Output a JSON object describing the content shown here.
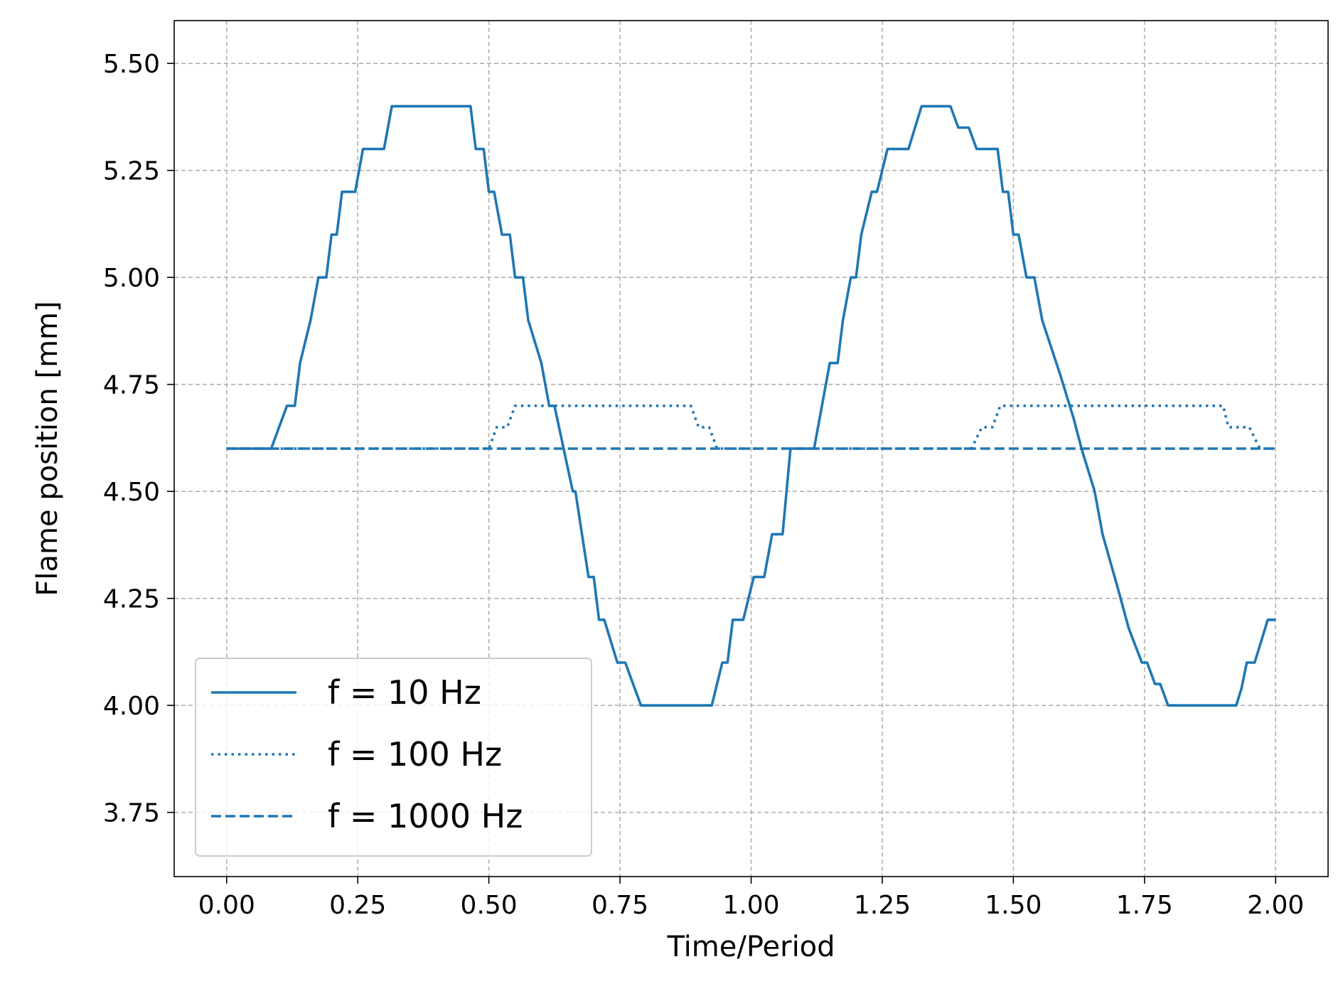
{
  "chart_data": {
    "type": "line",
    "title": "",
    "xlabel": "Time/Period",
    "ylabel": "Flame position [mm]",
    "xlim": [
      -0.1,
      2.1
    ],
    "ylim": [
      3.6,
      5.6
    ],
    "xticks": [
      0.0,
      0.25,
      0.5,
      0.75,
      1.0,
      1.25,
      1.5,
      1.75,
      2.0
    ],
    "xtick_labels": [
      "0.00",
      "0.25",
      "0.50",
      "0.75",
      "1.00",
      "1.25",
      "1.50",
      "1.75",
      "2.00"
    ],
    "yticks": [
      3.75,
      4.0,
      4.25,
      4.5,
      4.75,
      5.0,
      5.25,
      5.5
    ],
    "ytick_labels": [
      "3.75",
      "4.00",
      "4.25",
      "4.50",
      "4.75",
      "5.00",
      "5.25",
      "5.50"
    ],
    "grid": true,
    "legend_position": "lower-left",
    "series": [
      {
        "name": "f = 10 Hz",
        "style": "solid",
        "color": "#1f77b4",
        "points": [
          [
            0.0,
            4.6
          ],
          [
            0.085,
            4.6
          ],
          [
            0.115,
            4.7
          ],
          [
            0.13,
            4.7
          ],
          [
            0.14,
            4.8
          ],
          [
            0.16,
            4.9
          ],
          [
            0.175,
            5.0
          ],
          [
            0.19,
            5.0
          ],
          [
            0.2,
            5.1
          ],
          [
            0.21,
            5.1
          ],
          [
            0.22,
            5.2
          ],
          [
            0.245,
            5.2
          ],
          [
            0.26,
            5.3
          ],
          [
            0.3,
            5.3
          ],
          [
            0.315,
            5.4
          ],
          [
            0.465,
            5.4
          ],
          [
            0.475,
            5.3
          ],
          [
            0.49,
            5.3
          ],
          [
            0.5,
            5.2
          ],
          [
            0.51,
            5.2
          ],
          [
            0.525,
            5.1
          ],
          [
            0.54,
            5.1
          ],
          [
            0.55,
            5.0
          ],
          [
            0.565,
            5.0
          ],
          [
            0.575,
            4.9
          ],
          [
            0.6,
            4.8
          ],
          [
            0.615,
            4.7
          ],
          [
            0.625,
            4.7
          ],
          [
            0.66,
            4.5
          ],
          [
            0.665,
            4.5
          ],
          [
            0.69,
            4.3
          ],
          [
            0.7,
            4.3
          ],
          [
            0.71,
            4.2
          ],
          [
            0.72,
            4.2
          ],
          [
            0.745,
            4.1
          ],
          [
            0.76,
            4.1
          ],
          [
            0.79,
            4.0
          ],
          [
            0.925,
            4.0
          ],
          [
            0.945,
            4.1
          ],
          [
            0.955,
            4.1
          ],
          [
            0.965,
            4.2
          ],
          [
            0.985,
            4.2
          ],
          [
            1.005,
            4.3
          ],
          [
            1.025,
            4.3
          ],
          [
            1.04,
            4.4
          ],
          [
            1.06,
            4.4
          ],
          [
            1.075,
            4.6
          ],
          [
            1.12,
            4.6
          ],
          [
            1.15,
            4.8
          ],
          [
            1.165,
            4.8
          ],
          [
            1.175,
            4.9
          ],
          [
            1.19,
            5.0
          ],
          [
            1.2,
            5.0
          ],
          [
            1.21,
            5.1
          ],
          [
            1.23,
            5.2
          ],
          [
            1.24,
            5.2
          ],
          [
            1.26,
            5.3
          ],
          [
            1.3,
            5.3
          ],
          [
            1.325,
            5.4
          ],
          [
            1.38,
            5.4
          ],
          [
            1.395,
            5.35
          ],
          [
            1.415,
            5.35
          ],
          [
            1.43,
            5.3
          ],
          [
            1.47,
            5.3
          ],
          [
            1.48,
            5.2
          ],
          [
            1.49,
            5.2
          ],
          [
            1.5,
            5.1
          ],
          [
            1.51,
            5.1
          ],
          [
            1.525,
            5.0
          ],
          [
            1.54,
            5.0
          ],
          [
            1.555,
            4.9
          ],
          [
            1.59,
            4.77
          ],
          [
            1.615,
            4.67
          ],
          [
            1.63,
            4.6
          ],
          [
            1.655,
            4.5
          ],
          [
            1.67,
            4.4
          ],
          [
            1.7,
            4.27
          ],
          [
            1.72,
            4.18
          ],
          [
            1.745,
            4.1
          ],
          [
            1.755,
            4.1
          ],
          [
            1.77,
            4.05
          ],
          [
            1.78,
            4.05
          ],
          [
            1.795,
            4.0
          ],
          [
            1.925,
            4.0
          ],
          [
            1.935,
            4.04
          ],
          [
            1.945,
            4.1
          ],
          [
            1.96,
            4.1
          ],
          [
            1.985,
            4.2
          ],
          [
            2.0,
            4.2
          ]
        ]
      },
      {
        "name": "f = 100 Hz",
        "style": "dotted",
        "color": "#1f77b4",
        "points": [
          [
            0.0,
            4.6
          ],
          [
            0.5,
            4.6
          ],
          [
            0.515,
            4.65
          ],
          [
            0.535,
            4.65
          ],
          [
            0.55,
            4.7
          ],
          [
            0.885,
            4.7
          ],
          [
            0.9,
            4.65
          ],
          [
            0.92,
            4.65
          ],
          [
            0.935,
            4.6
          ],
          [
            1.42,
            4.6
          ],
          [
            1.44,
            4.65
          ],
          [
            1.46,
            4.65
          ],
          [
            1.475,
            4.7
          ],
          [
            1.9,
            4.7
          ],
          [
            1.91,
            4.65
          ],
          [
            1.95,
            4.65
          ],
          [
            1.97,
            4.6
          ],
          [
            2.0,
            4.6
          ]
        ]
      },
      {
        "name": "f = 1000 Hz",
        "style": "dashed",
        "color": "#1f77b4",
        "points": [
          [
            0.0,
            4.6
          ],
          [
            2.0,
            4.6
          ]
        ]
      }
    ]
  }
}
